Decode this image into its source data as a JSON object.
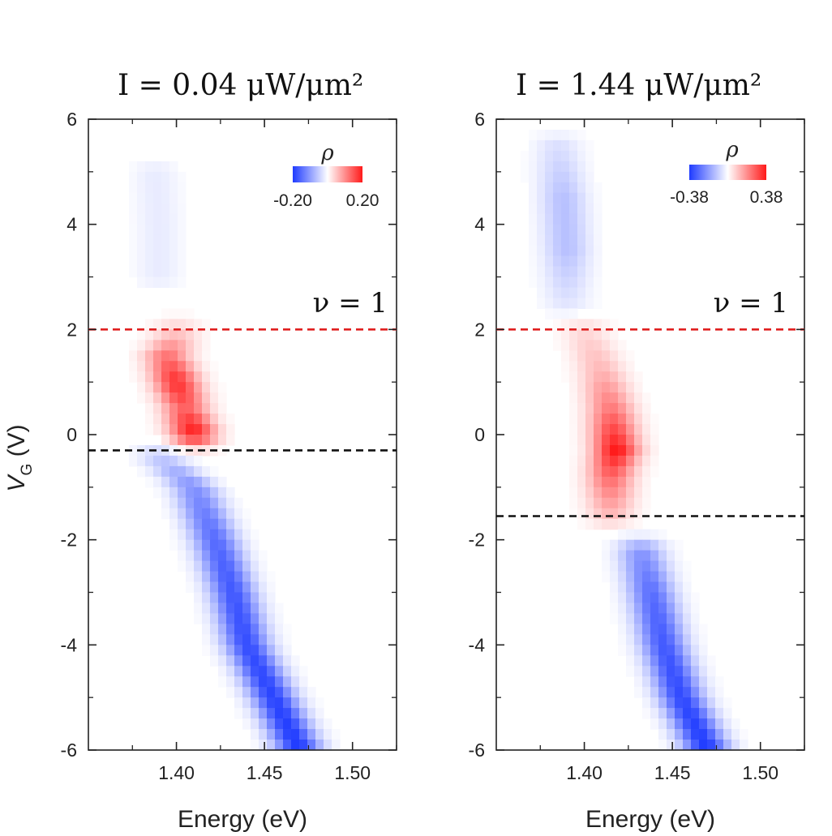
{
  "chart_data": [
    {
      "type": "heatmap",
      "title": "I =  0.04 μW/μm²",
      "xlabel": "Energy (eV)",
      "ylabel": "V",
      "ylabel_subscript": "G",
      "ylabel_unit": " (V)",
      "xlim": [
        1.35,
        1.525
      ],
      "ylim": [
        -6,
        6
      ],
      "xticks": [
        1.4,
        1.45,
        1.5
      ],
      "xtick_labels": [
        "1.40",
        "1.45",
        "1.50"
      ],
      "yticks": [
        6,
        4,
        2,
        0,
        -2,
        -4,
        -6
      ],
      "ytick_labels": [
        "6",
        "4",
        "2",
        "0",
        "-2",
        "-4",
        "-6"
      ],
      "colorbar": {
        "title": "ρ",
        "min": -0.2,
        "max": 0.2,
        "min_label": "-0.20",
        "max_label": "0.20",
        "colors": [
          "#1f3bff",
          "#ffffff",
          "#ff1a1a"
        ]
      },
      "annotation": "ν = 1",
      "reference_lines": [
        {
          "y": 2.0,
          "color": "#e02020",
          "style": "dashed"
        },
        {
          "y": -0.3,
          "color": "#111111",
          "style": "dashed"
        }
      ],
      "features": [
        {
          "name": "negative-band",
          "sign": -1,
          "y": [
            -6,
            -5,
            -4,
            -3,
            -2,
            -1,
            -0.4
          ],
          "x": [
            1.47,
            1.455,
            1.44,
            1.432,
            1.422,
            1.41,
            1.39
          ],
          "peak": [
            -0.2,
            -0.19,
            -0.18,
            -0.17,
            -0.15,
            -0.11,
            -0.05
          ]
        },
        {
          "name": "positive-feature",
          "sign": 1,
          "y": [
            0,
            0.5,
            1.0,
            1.5,
            2.0
          ],
          "x": [
            1.41,
            1.405,
            1.4,
            1.395,
            1.4
          ],
          "peak": [
            0.2,
            0.14,
            0.18,
            0.12,
            0.04
          ]
        },
        {
          "name": "weak-negative-upper",
          "sign": -1,
          "y": [
            3,
            4,
            5
          ],
          "x": [
            1.39,
            1.39,
            1.388
          ],
          "peak": [
            -0.02,
            -0.02,
            -0.02
          ]
        }
      ]
    },
    {
      "type": "heatmap",
      "title": "I = 1.44 μW/μm²",
      "xlabel": "Energy (eV)",
      "ylabel": "",
      "xlim": [
        1.35,
        1.525
      ],
      "ylim": [
        -6,
        6
      ],
      "xticks": [
        1.4,
        1.45,
        1.5
      ],
      "xtick_labels": [
        "1.40",
        "1.45",
        "1.50"
      ],
      "yticks": [
        6,
        4,
        2,
        0,
        -2,
        -4,
        -6
      ],
      "ytick_labels": [
        "6",
        "4",
        "2",
        "0",
        "-2",
        "-4",
        "-6"
      ],
      "colorbar": {
        "title": "ρ",
        "min": -0.38,
        "max": 0.38,
        "min_label": "-0.38",
        "max_label": "0.38",
        "colors": [
          "#1f3bff",
          "#ffffff",
          "#ff1a1a"
        ]
      },
      "annotation": "ν = 1",
      "reference_lines": [
        {
          "y": 2.0,
          "color": "#e02020",
          "style": "dashed"
        },
        {
          "y": -1.55,
          "color": "#111111",
          "style": "dashed"
        }
      ],
      "features": [
        {
          "name": "negative-band",
          "sign": -1,
          "y": [
            -6,
            -5,
            -4,
            -3,
            -2.2
          ],
          "x": [
            1.47,
            1.455,
            1.445,
            1.438,
            1.432
          ],
          "peak": [
            -0.38,
            -0.35,
            -0.32,
            -0.28,
            -0.2
          ]
        },
        {
          "name": "positive-feature",
          "sign": 1,
          "y": [
            -1.5,
            -0.8,
            -0.3,
            0.5,
            1.2,
            2.0
          ],
          "x": [
            1.415,
            1.415,
            1.418,
            1.415,
            1.41,
            1.4
          ],
          "peak": [
            0.12,
            0.25,
            0.38,
            0.22,
            0.12,
            0.06
          ]
        },
        {
          "name": "negative-upper",
          "sign": -1,
          "y": [
            2.5,
            3.5,
            4.5,
            5.5
          ],
          "x": [
            1.39,
            1.39,
            1.388,
            1.385
          ],
          "peak": [
            -0.05,
            -0.12,
            -0.12,
            -0.06
          ]
        }
      ]
    }
  ]
}
